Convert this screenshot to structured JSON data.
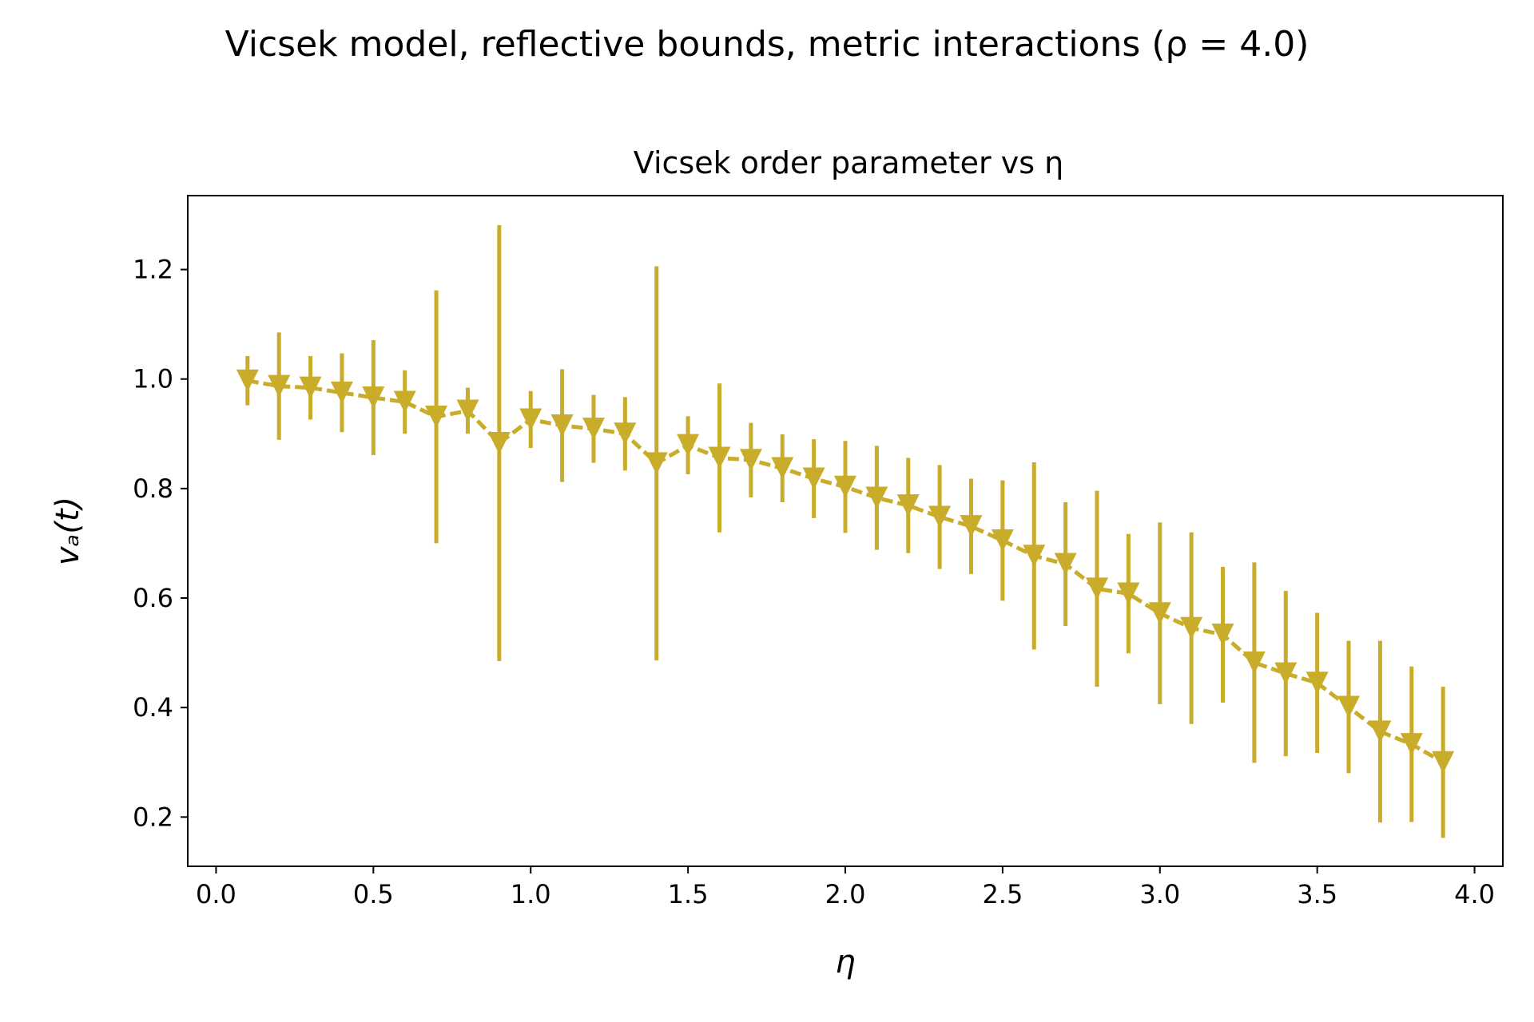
{
  "figure": {
    "suptitle": "Vicsek model, reflective bounds, metric interactions (ρ = 4.0)"
  },
  "chart_data": {
    "type": "line",
    "title": "Vicsek order parameter vs η",
    "xlabel": "η",
    "ylabel": "vₐ(t)",
    "xlim": [
      -0.09,
      4.09
    ],
    "ylim": [
      0.11,
      1.335
    ],
    "xticks": [
      0.0,
      0.5,
      1.0,
      1.5,
      2.0,
      2.5,
      3.0,
      3.5,
      4.0
    ],
    "xtick_labels": [
      "0.0",
      "0.5",
      "1.0",
      "1.5",
      "2.0",
      "2.5",
      "3.0",
      "3.5",
      "4.0"
    ],
    "yticks": [
      0.2,
      0.4,
      0.6,
      0.8,
      1.0,
      1.2
    ],
    "ytick_labels": [
      "0.2",
      "0.4",
      "0.6",
      "0.8",
      "1.0",
      "1.2"
    ],
    "grid": false,
    "legend": "none",
    "color": "#c9ac2a",
    "marker": "triangle-down",
    "line_style": "dashed",
    "series": [
      {
        "x": [
          0.1,
          0.2,
          0.3,
          0.4,
          0.5,
          0.6,
          0.7,
          0.8,
          0.9,
          1.0,
          1.1,
          1.2,
          1.3,
          1.4,
          1.5,
          1.6,
          1.7,
          1.8,
          1.9,
          2.0,
          2.1,
          2.2,
          2.3,
          2.4,
          2.5,
          2.6,
          2.7,
          2.8,
          2.9,
          3.0,
          3.1,
          3.2,
          3.3,
          3.4,
          3.5,
          3.6,
          3.7,
          3.8,
          3.9
        ],
        "y": [
          0.997,
          0.987,
          0.984,
          0.975,
          0.966,
          0.958,
          0.931,
          0.942,
          0.883,
          0.926,
          0.915,
          0.909,
          0.9,
          0.846,
          0.879,
          0.856,
          0.852,
          0.837,
          0.818,
          0.803,
          0.783,
          0.769,
          0.748,
          0.731,
          0.705,
          0.677,
          0.662,
          0.617,
          0.608,
          0.572,
          0.545,
          0.533,
          0.482,
          0.462,
          0.445,
          0.401,
          0.356,
          0.333,
          0.3
        ],
        "yerr": [
          0.045,
          0.098,
          0.058,
          0.072,
          0.105,
          0.058,
          0.231,
          0.042,
          0.398,
          0.052,
          0.103,
          0.062,
          0.067,
          0.36,
          0.053,
          0.136,
          0.068,
          0.062,
          0.072,
          0.084,
          0.095,
          0.087,
          0.095,
          0.087,
          0.11,
          0.171,
          0.113,
          0.179,
          0.109,
          0.166,
          0.175,
          0.124,
          0.183,
          0.151,
          0.128,
          0.121,
          0.166,
          0.142,
          0.138
        ]
      }
    ]
  }
}
